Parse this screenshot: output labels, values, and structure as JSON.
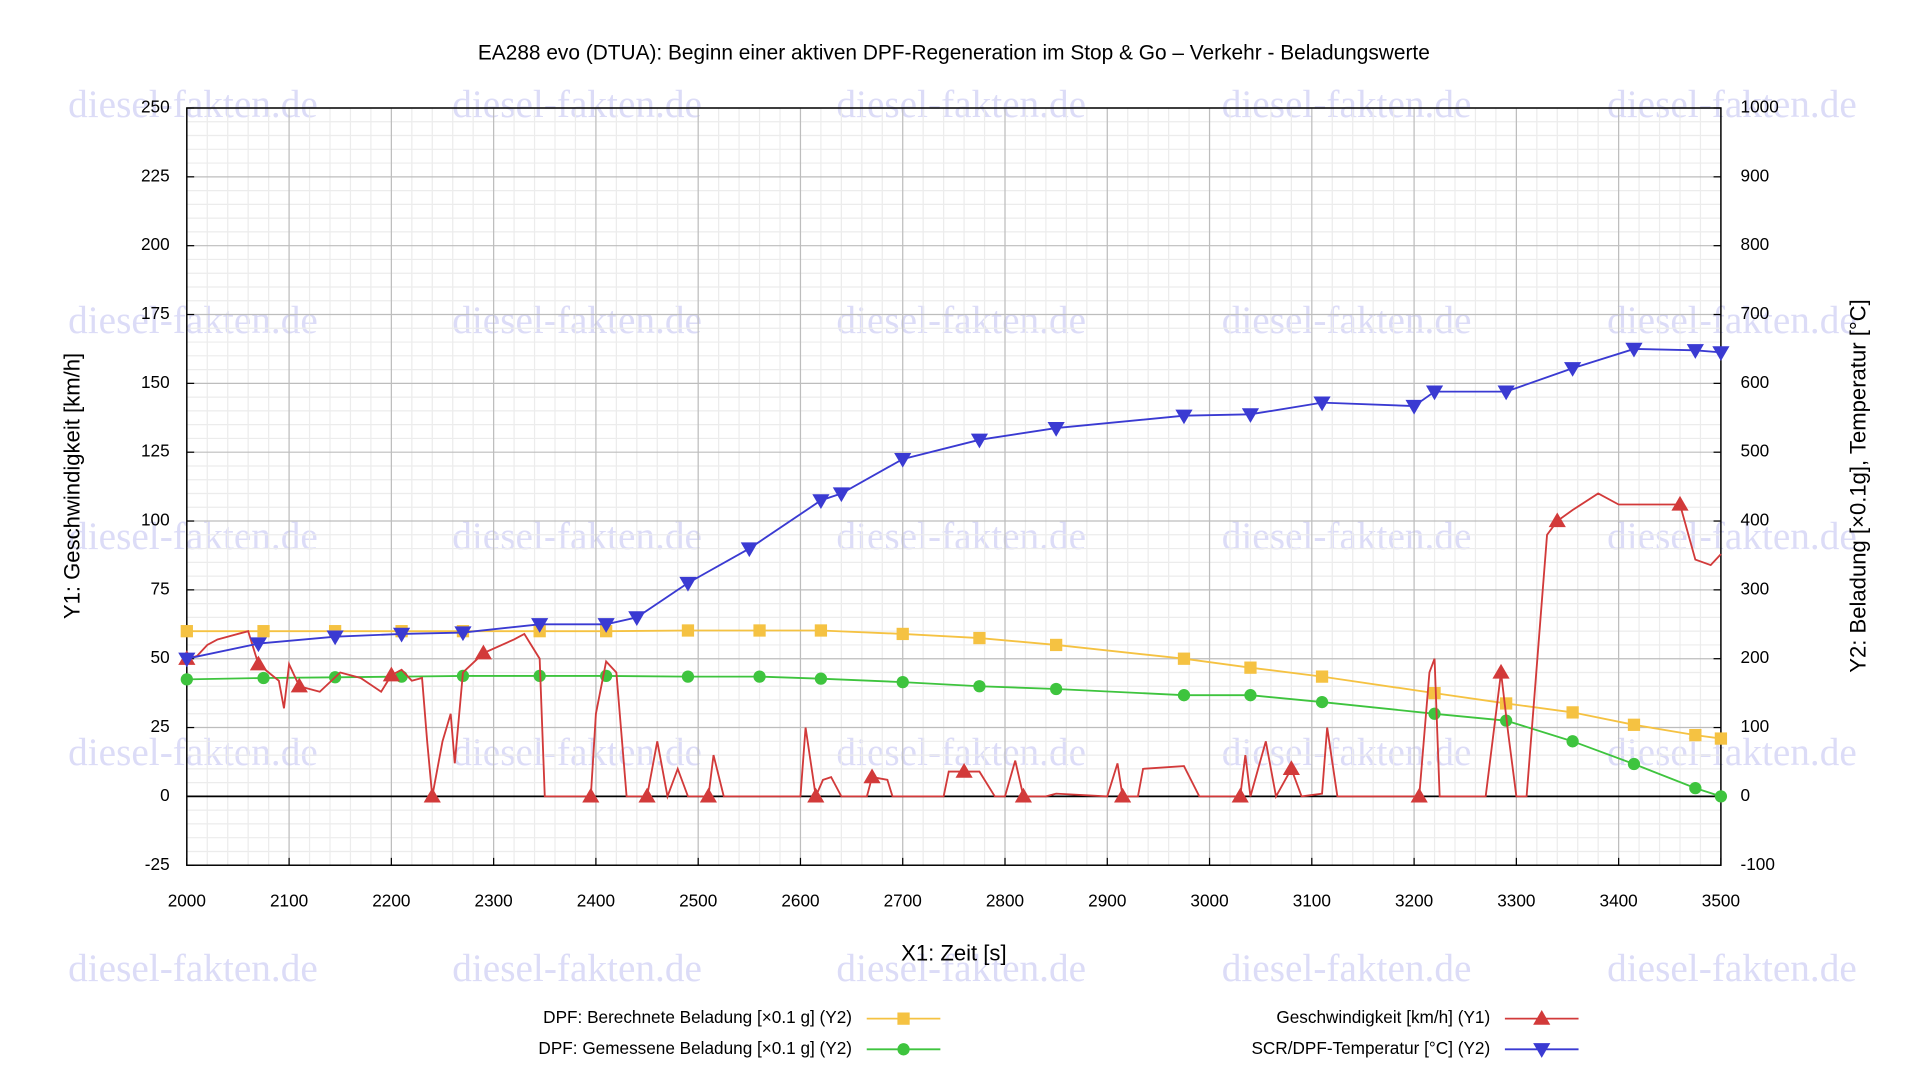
{
  "chart_data": {
    "type": "line",
    "title": "EA288 evo (DTUA): Beginn einer aktiven DPF-Regeneration im Stop & Go – Verkehr - Beladungswerte",
    "xlabel": "X1: Zeit [s]",
    "ylabel": "Y1: Geschwindigkeit [km/h]",
    "y2label": "Y2: Beladung [×0.1g], Temperatur [°C]",
    "watermark": "diesel-fakten.de",
    "xlim": [
      2000,
      3500
    ],
    "xticks": [
      2000,
      2100,
      2200,
      2300,
      2400,
      2500,
      2600,
      2700,
      2800,
      2900,
      3000,
      3100,
      3200,
      3300,
      3400,
      3500
    ],
    "ylim": [
      -25,
      250
    ],
    "yticks": [
      -25,
      0,
      25,
      50,
      75,
      100,
      125,
      150,
      175,
      200,
      225,
      250
    ],
    "y2lim": [
      -100,
      1000
    ],
    "y2ticks": [
      -100,
      0,
      100,
      200,
      300,
      400,
      500,
      600,
      700,
      800,
      900,
      1000
    ],
    "grid": true,
    "series": [
      {
        "name": "DPF: Berechnete Beladung [×0.1 g] (Y2)",
        "color": "#f5c242",
        "marker": "square",
        "axis": "y2",
        "x": [
          2000,
          2075,
          2145,
          2210,
          2270,
          2345,
          2410,
          2490,
          2560,
          2620,
          2700,
          2775,
          2850,
          2975,
          3040,
          3110,
          3220,
          3290,
          3355,
          3415,
          3475,
          3500
        ],
        "values": [
          240,
          240,
          240,
          240,
          240,
          240,
          240,
          241,
          241,
          241,
          236,
          230,
          220,
          200,
          187,
          174,
          150,
          135,
          122,
          104,
          89,
          84
        ]
      },
      {
        "name": "DPF: Gemessene Beladung [×0.1 g] (Y2)",
        "color": "#3ec43e",
        "marker": "circle",
        "axis": "y2",
        "x": [
          2000,
          2075,
          2145,
          2210,
          2270,
          2345,
          2410,
          2490,
          2560,
          2620,
          2700,
          2775,
          2850,
          2975,
          3040,
          3110,
          3220,
          3290,
          3355,
          3415,
          3475,
          3500
        ],
        "values": [
          170,
          172,
          173,
          174,
          175,
          175,
          175,
          174,
          174,
          171,
          166,
          160,
          156,
          147,
          147,
          137,
          120,
          110,
          80,
          47,
          12,
          0
        ]
      },
      {
        "name": "Geschwindigkeit [km/h] (Y1)",
        "color": "#d23a3a",
        "marker": "triangle-up",
        "x": [
          2000,
          2010,
          2020,
          2030,
          2060,
          2070,
          2080,
          2090,
          2095,
          2100,
          2110,
          2130,
          2150,
          2170,
          2190,
          2200,
          2210,
          2220,
          2230,
          2235,
          2240,
          2250,
          2258,
          2262,
          2270,
          2290,
          2320,
          2330,
          2345,
          2350,
          2395,
          2400,
          2410,
          2420,
          2430,
          2450,
          2460,
          2470,
          2480,
          2490,
          2510,
          2515,
          2525,
          2600,
          2605,
          2615,
          2622,
          2630,
          2640,
          2665,
          2670,
          2685,
          2690,
          2740,
          2745,
          2760,
          2775,
          2790,
          2800,
          2810,
          2818,
          2840,
          2850,
          2900,
          2910,
          2915,
          2930,
          2935,
          2975,
          2990,
          3030,
          3035,
          3040,
          3055,
          3065,
          3080,
          3090,
          3110,
          3115,
          3125,
          3205,
          3215,
          3220,
          3225,
          3270,
          3285,
          3292,
          3300,
          3310,
          3330,
          3340,
          3355,
          3380,
          3400,
          3415,
          3460,
          3475,
          3490,
          3500
        ],
        "values": [
          50,
          51,
          55,
          57,
          60,
          48,
          45,
          42,
          32,
          48,
          40,
          38,
          45,
          43,
          38,
          44,
          46,
          42,
          43,
          20,
          0,
          20,
          30,
          12,
          45,
          52,
          57,
          59,
          50,
          0,
          0,
          30,
          49,
          45,
          0,
          0,
          20,
          0,
          10,
          0,
          0,
          15,
          0,
          0,
          25,
          0,
          6,
          7,
          0,
          0,
          7,
          6,
          0,
          0,
          9,
          9,
          9,
          0,
          0,
          13,
          0,
          0,
          1,
          0,
          12,
          0,
          0,
          10,
          11,
          0,
          0,
          15,
          0,
          20,
          0,
          10,
          0,
          1,
          25,
          0,
          0,
          45,
          50,
          0,
          0,
          45,
          23,
          0,
          0,
          95,
          100,
          104,
          110,
          106,
          106,
          106,
          86,
          84,
          88
        ]
      },
      {
        "name": "SCR/DPF-Temperatur [°C] (Y2)",
        "color": "#3a3ad2",
        "marker": "triangle-down",
        "axis": "y2",
        "x": [
          2000,
          2070,
          2145,
          2210,
          2270,
          2345,
          2410,
          2440,
          2490,
          2550,
          2620,
          2640,
          2700,
          2775,
          2850,
          2975,
          3040,
          3110,
          3200,
          3220,
          3290,
          3355,
          3415,
          3475,
          3500
        ],
        "values": [
          200,
          222,
          232,
          236,
          238,
          250,
          250,
          260,
          310,
          360,
          430,
          440,
          490,
          518,
          535,
          553,
          555,
          572,
          567,
          588,
          588,
          622,
          650,
          648,
          645
        ]
      }
    ]
  }
}
